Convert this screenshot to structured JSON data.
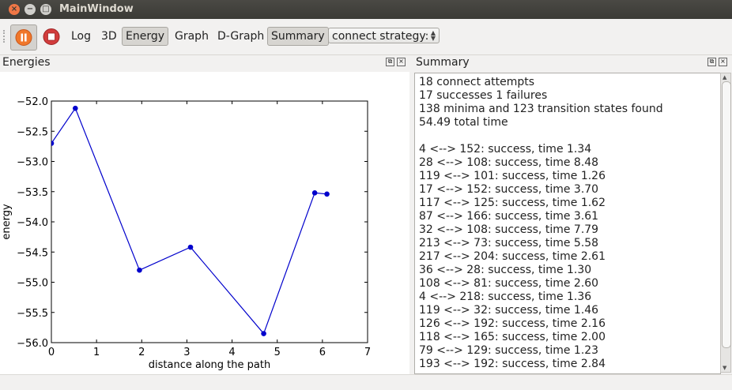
{
  "window": {
    "title": "MainWindow"
  },
  "toolbar": {
    "pause_icon": "pause-icon",
    "stop_icon": "stop-icon",
    "buttons": [
      "Log",
      "3D",
      "Energy",
      "Graph",
      "D-Graph",
      "Summary"
    ],
    "checked": [
      "Energy",
      "Summary"
    ],
    "strategy_label": "connect strategy:"
  },
  "energies_dock": {
    "title": "Energies"
  },
  "summary_dock": {
    "title": "Summary"
  },
  "chart_data": {
    "type": "line",
    "xlabel": "distance along the path",
    "ylabel": "energy",
    "xlim": [
      0,
      7
    ],
    "ylim": [
      -56.0,
      -52.0
    ],
    "xticks": [
      "0",
      "1",
      "2",
      "3",
      "4",
      "5",
      "6",
      "7"
    ],
    "yticks": [
      "−52.0",
      "−52.5",
      "−53.0",
      "−53.5",
      "−54.0",
      "−54.5",
      "−55.0",
      "−55.5",
      "−56.0"
    ],
    "x": [
      0.0,
      0.53,
      1.95,
      3.08,
      4.7,
      5.83,
      6.1
    ],
    "y": [
      -52.7,
      -52.12,
      -54.8,
      -54.42,
      -55.85,
      -53.52,
      -53.54
    ],
    "color": "#0000cc"
  },
  "summary": {
    "lines": [
      "18 connect attempts",
      "17 successes 1 failures",
      "138 minima and 123 transition states found",
      "54.49 total time",
      "",
      "4 <--> 152: success, time 1.34",
      "28 <--> 108: success, time 8.48",
      "119 <--> 101: success, time 1.26",
      "17 <--> 152: success, time 3.70",
      "117 <--> 125: success, time 1.62",
      "87 <--> 166: success, time 3.61",
      "32 <--> 108: success, time 7.79",
      "213 <--> 73: success, time 5.58",
      "217 <--> 204: success, time 2.61",
      "36 <--> 28: success, time 1.30",
      "108 <--> 81: success, time 2.60",
      "4 <--> 218: success, time 1.36",
      "119 <--> 32: success, time 1.46",
      "126 <--> 192: success, time 2.16",
      "118 <--> 165: success, time 2.00",
      "79 <--> 129: success, time 1.23",
      "193 <--> 192: success, time 2.84"
    ]
  }
}
